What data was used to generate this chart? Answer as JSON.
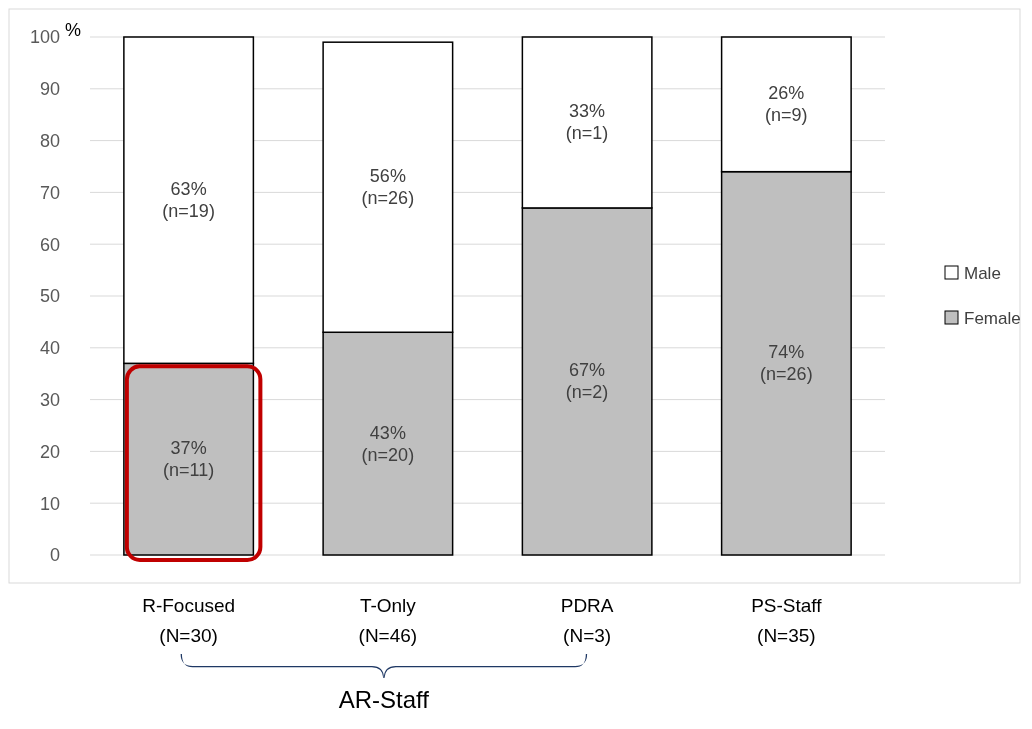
{
  "chart_data": {
    "type": "bar",
    "stacked": true,
    "ylabel": "%",
    "categories": [
      "R-Focused\n(N=30)",
      "T-Only\n(N=46)",
      "PDRA\n(N=3)",
      "PS-Staff\n(N=35)"
    ],
    "series": [
      {
        "name": "Female",
        "color": "#bfbfbf",
        "values": [
          37,
          43,
          67,
          74
        ],
        "value_labels": [
          "37%\n(n=11)",
          "43%\n(n=20)",
          "67%\n(n=2)",
          "74%\n(n=26)"
        ]
      },
      {
        "name": "Male",
        "color": "#ffffff",
        "values": [
          63,
          56,
          33,
          26
        ],
        "value_labels": [
          "63%\n(n=19)",
          "56%\n(n=26)",
          "33%\n(n=1)",
          "26%\n(n=9)"
        ]
      }
    ],
    "ylim": [
      0,
      100
    ],
    "yticks": [
      0,
      10,
      20,
      30,
      40,
      50,
      60,
      70,
      80,
      90,
      100
    ],
    "grid": "y",
    "legend": "right",
    "annotations": [
      "AR-Staff"
    ]
  }
}
